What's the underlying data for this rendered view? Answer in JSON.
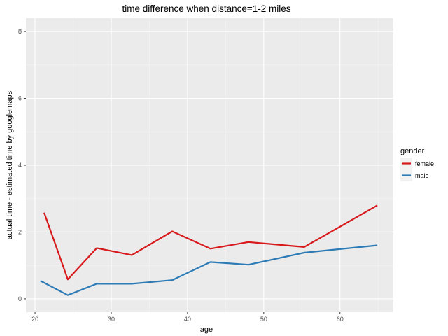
{
  "chart_data": {
    "type": "line",
    "title": "time difference when distance=1-2 miles",
    "xlabel": "age",
    "ylabel": "actual time - estimated time by googlemaps",
    "xlim": [
      18.8,
      67.0
    ],
    "ylim": [
      -0.4,
      8.4
    ],
    "xticks": [
      20,
      30,
      40,
      50,
      60
    ],
    "yticks": [
      0,
      2,
      4,
      6,
      8
    ],
    "grid": true,
    "legend": {
      "title": "gender",
      "position": "right"
    },
    "series": [
      {
        "name": "female",
        "color": "#d7191c",
        "x": [
          21.2,
          24.3,
          28.1,
          32.7,
          38.0,
          43.0,
          48.0,
          55.3,
          64.9
        ],
        "y": [
          2.58,
          0.58,
          1.52,
          1.31,
          2.02,
          1.5,
          1.7,
          1.55,
          2.8
        ]
      },
      {
        "name": "male",
        "color": "#2c7bb6",
        "x": [
          20.7,
          24.3,
          28.1,
          32.7,
          38.0,
          43.0,
          48.0,
          55.3,
          64.9
        ],
        "y": [
          0.54,
          0.11,
          0.45,
          0.45,
          0.56,
          1.1,
          1.02,
          1.38,
          1.6
        ]
      }
    ]
  }
}
